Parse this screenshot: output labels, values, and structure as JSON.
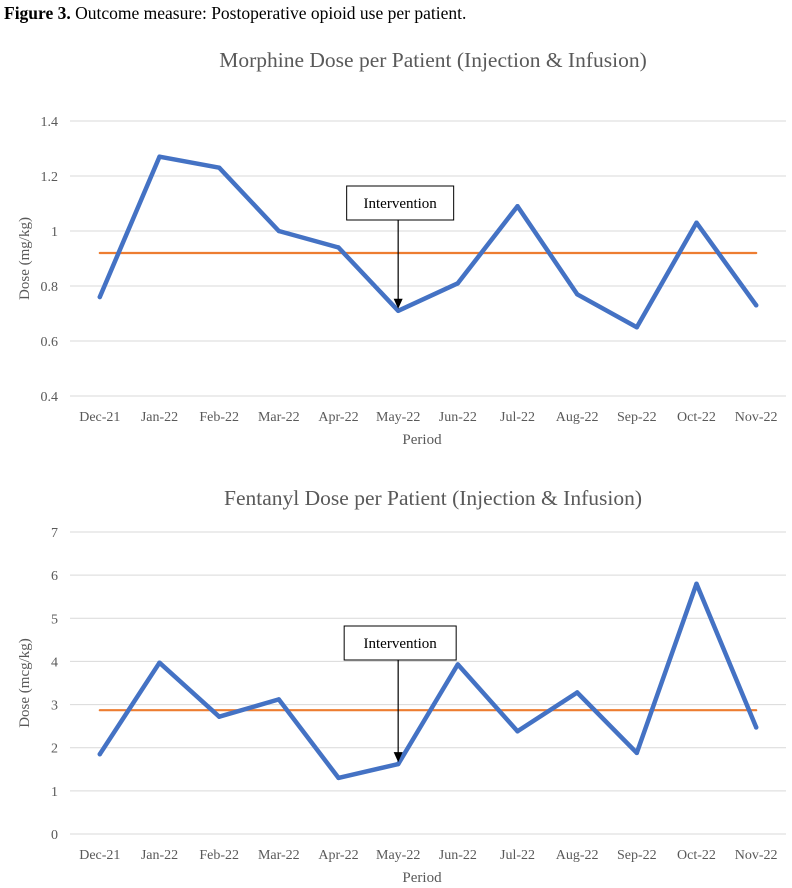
{
  "figure": {
    "label": "Figure 3.",
    "caption": " Outcome measure: Postoperative opioid use per patient."
  },
  "chart_data": [
    {
      "type": "line",
      "title": "Morphine Dose per Patient (Injection & Infusion)",
      "xlabel": "Period",
      "ylabel": "Dose (mg/kg)",
      "ylim": [
        0.4,
        1.4
      ],
      "yticks": [
        "0.4",
        "0.6",
        "0.8",
        "1",
        "1.2",
        "1.4"
      ],
      "categories": [
        "Dec-21",
        "Jan-22",
        "Feb-22",
        "Mar-22",
        "Apr-22",
        "May-22",
        "Jun-22",
        "Jul-22",
        "Aug-22",
        "Sep-22",
        "Oct-22",
        "Nov-22"
      ],
      "series": [
        {
          "values": [
            0.76,
            1.27,
            1.23,
            1.0,
            0.94,
            0.71,
            0.81,
            1.09,
            0.77,
            0.65,
            1.03,
            0.73
          ],
          "color": "#4472C4"
        },
        {
          "values": [
            0.92,
            0.92,
            0.92,
            0.92,
            0.92,
            0.92,
            0.92,
            0.92,
            0.92,
            0.92,
            0.92,
            0.92
          ],
          "color": "#ED7D31"
        }
      ],
      "annotation": {
        "text": "Intervention",
        "category": "May-22"
      },
      "grid": true
    },
    {
      "type": "line",
      "title": "Fentanyl Dose per Patient (Injection & Infusion)",
      "xlabel": "Period",
      "ylabel": "Dose (mcg/kg)",
      "ylim": [
        0,
        7
      ],
      "yticks": [
        "0",
        "1",
        "2",
        "3",
        "4",
        "5",
        "6",
        "7"
      ],
      "categories": [
        "Dec-21",
        "Jan-22",
        "Feb-22",
        "Mar-22",
        "Apr-22",
        "May-22",
        "Jun-22",
        "Jul-22",
        "Aug-22",
        "Sep-22",
        "Oct-22",
        "Nov-22"
      ],
      "series": [
        {
          "values": [
            1.85,
            3.97,
            2.72,
            3.12,
            1.3,
            1.62,
            3.93,
            2.38,
            3.28,
            1.88,
            5.8,
            2.47
          ],
          "color": "#4472C4"
        },
        {
          "values": [
            2.87,
            2.87,
            2.87,
            2.87,
            2.87,
            2.87,
            2.87,
            2.87,
            2.87,
            2.87,
            2.87,
            2.87
          ],
          "color": "#ED7D31"
        }
      ],
      "annotation": {
        "text": "Intervention",
        "category": "May-22"
      },
      "grid": true
    }
  ]
}
